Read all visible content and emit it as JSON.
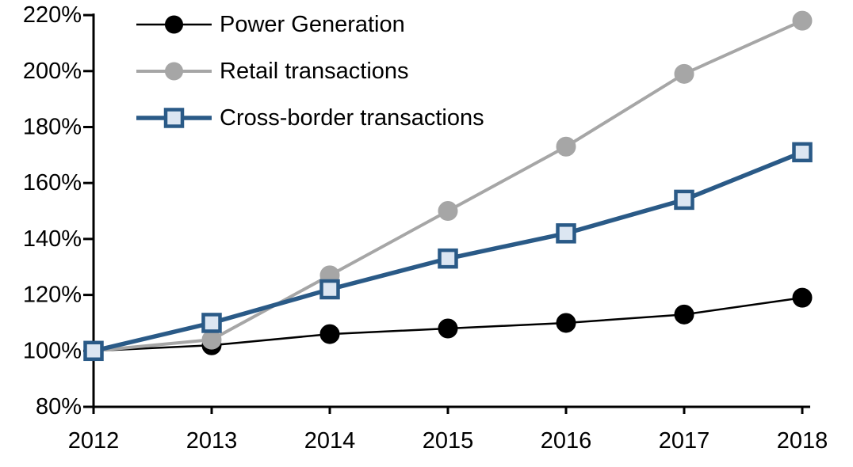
{
  "chart_data": {
    "type": "line",
    "title": "",
    "xlabel": "",
    "ylabel": "",
    "grid": false,
    "legend_position": "top-left",
    "background_color": "#ffffff",
    "axis_color": "#000000",
    "ylim": [
      80,
      220
    ],
    "ytick_step": 20,
    "yticks": [
      {
        "value": 220,
        "label": "220%"
      },
      {
        "value": 200,
        "label": "200%"
      },
      {
        "value": 180,
        "label": "180%"
      },
      {
        "value": 160,
        "label": "160%"
      },
      {
        "value": 140,
        "label": "140%"
      },
      {
        "value": 120,
        "label": "120%"
      },
      {
        "value": 100,
        "label": "100%"
      },
      {
        "value": 80,
        "label": "80%"
      }
    ],
    "categories": [
      "2012",
      "2013",
      "2014",
      "2015",
      "2016",
      "2017",
      "2018"
    ],
    "series": [
      {
        "name": "Power Generation",
        "color": "#000000",
        "marker": "circle",
        "marker_fill": "#000000",
        "line_width": 2.5,
        "values": [
          100,
          102,
          106,
          108,
          110,
          113,
          119
        ]
      },
      {
        "name": "Retail transactions",
        "color": "#A6A6A6",
        "marker": "circle",
        "marker_fill": "#A6A6A6",
        "line_width": 4,
        "values": [
          100,
          104,
          127,
          150,
          173,
          199,
          218
        ]
      },
      {
        "name": "Cross-border transactions",
        "color": "#2A5A87",
        "marker": "square",
        "marker_fill": "#DCE6F2",
        "line_width": 5.5,
        "values": [
          100,
          110,
          122,
          133,
          142,
          154,
          171
        ]
      }
    ]
  }
}
